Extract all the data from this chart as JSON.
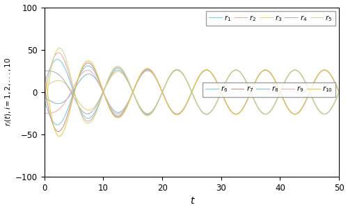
{
  "xlabel": "t",
  "ylabel": "$r_i(t), i=1,2,...,10$",
  "xlim": [
    0,
    50
  ],
  "ylim": [
    -100,
    100
  ],
  "xticks": [
    0,
    10,
    20,
    30,
    40,
    50
  ],
  "yticks": [
    -100,
    -50,
    0,
    50,
    100
  ],
  "freq": 0.628,
  "decay": 0.18,
  "steady_amp": 26.0,
  "colors1": [
    "#76C8E8",
    "#F0A898",
    "#E8D070",
    "#B0B0B0",
    "#C8DC90"
  ],
  "colors2": [
    "#76C8E8",
    "#D08888",
    "#80B8E0",
    "#F0B0A0",
    "#E8C840"
  ],
  "init_amps": [
    45,
    58,
    8,
    25,
    68
  ],
  "init_phases": [
    0.2,
    -0.1,
    0.9,
    1.6,
    -0.4
  ],
  "steady_phase": 0.0,
  "legend1_labels": [
    "$r_1$",
    "$r_2$",
    "$r_3$",
    "$r_4$",
    "$r_5$"
  ],
  "legend2_labels": [
    "$r_6$",
    "$r_7$",
    "$r_8$",
    "$r_9$",
    "$r_{10}$"
  ],
  "figsize": [
    5.0,
    3.03
  ],
  "dpi": 100
}
